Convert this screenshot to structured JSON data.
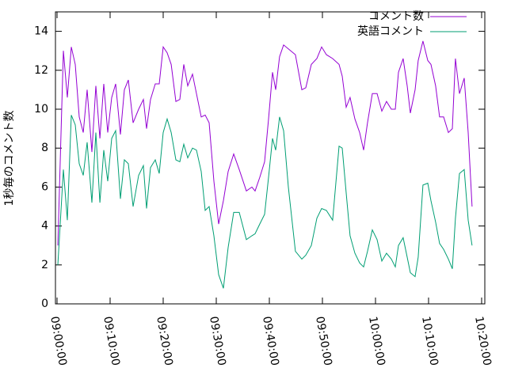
{
  "chart_data": {
    "type": "line",
    "y_label": "1秒毎のコメント数",
    "x": [
      "09:00:09",
      "09:01:12",
      "09:01:56",
      "09:02:41",
      "09:03:26",
      "09:04:11",
      "09:04:56",
      "09:05:40",
      "09:06:34",
      "09:07:19",
      "09:08:04",
      "09:08:48",
      "09:09:33",
      "09:10:18",
      "09:11:03",
      "09:11:56",
      "09:12:41",
      "09:13:26",
      "09:14:20",
      "09:15:22",
      "09:16:16",
      "09:16:52",
      "09:17:37",
      "09:18:30",
      "09:19:15",
      "09:20:00",
      "09:20:45",
      "09:21:30",
      "09:22:23",
      "09:23:08",
      "09:23:53",
      "09:24:38",
      "09:25:31",
      "09:26:16",
      "09:27:10",
      "09:27:55",
      "09:28:39",
      "09:29:33",
      "09:30:27",
      "09:31:21",
      "09:32:14",
      "09:33:17",
      "09:34:20",
      "09:35:40",
      "09:36:43",
      "09:37:19",
      "09:38:12",
      "09:39:06",
      "09:39:51",
      "09:40:36",
      "09:41:12",
      "09:41:56",
      "09:42:41",
      "09:43:35",
      "09:44:55",
      "09:46:07",
      "09:46:52",
      "09:47:55",
      "09:48:57",
      "09:49:51",
      "09:50:45",
      "09:51:56",
      "09:53:08",
      "09:53:44",
      "09:54:29",
      "09:55:13",
      "09:56:07",
      "09:57:01",
      "09:57:46",
      "09:58:30",
      "09:59:24",
      "10:00:18",
      "10:01:12",
      "10:02:05",
      "10:02:59",
      "10:03:44",
      "10:04:20",
      "10:05:13",
      "10:05:58",
      "10:06:34",
      "10:07:28",
      "10:08:03",
      "10:08:57",
      "10:09:51",
      "10:10:27",
      "10:11:20",
      "10:12:05",
      "10:12:50",
      "10:13:44",
      "10:14:29",
      "10:15:04",
      "10:15:49",
      "10:16:43",
      "10:17:28",
      "10:18:12"
    ],
    "series": [
      {
        "name": "コメント数",
        "color": "#9400d3",
        "values": [
          3,
          13,
          10.6,
          13.2,
          12.3,
          9.6,
          8.8,
          11,
          7.8,
          11.2,
          8.5,
          11.3,
          8.8,
          10.6,
          11.3,
          8.7,
          11,
          11.5,
          9.3,
          10,
          10.5,
          9,
          10.5,
          11.3,
          11.3,
          13.2,
          12.9,
          12.3,
          10.4,
          10.5,
          12.3,
          11.2,
          11.8,
          10.8,
          9.6,
          9.7,
          9.3,
          6.3,
          4.1,
          5.3,
          6.8,
          7.7,
          6.9,
          5.8,
          6,
          5.8,
          6.5,
          7.3,
          9.5,
          11.9,
          11,
          12.7,
          13.3,
          13.1,
          12.8,
          11,
          11.1,
          12.3,
          12.6,
          13.2,
          12.8,
          12.6,
          12.3,
          11.7,
          10.1,
          10.6,
          9.5,
          8.8,
          7.9,
          9.3,
          10.8,
          10.8,
          9.9,
          10.4,
          10,
          10,
          11.9,
          12.6,
          11.2,
          9.8,
          11,
          12.5,
          13.5,
          12.5,
          12.3,
          11.2,
          9.6,
          9.6,
          8.8,
          9,
          12.6,
          10.8,
          11.6,
          8.8,
          5
        ]
      },
      {
        "name": "英語コメント",
        "color": "#009e73",
        "values": [
          2,
          6.9,
          4.3,
          9.7,
          9.2,
          7.2,
          6.6,
          8.3,
          5.2,
          8.8,
          5.2,
          7.9,
          6.3,
          8.5,
          8.9,
          5.4,
          7.4,
          7.2,
          5,
          6.6,
          7.1,
          4.9,
          7,
          7.4,
          6.7,
          8.8,
          9.5,
          8.8,
          7.4,
          7.3,
          8.2,
          7.5,
          8,
          7.9,
          6.8,
          4.8,
          5,
          3.5,
          1.5,
          0.8,
          2.9,
          4.7,
          4.7,
          3.3,
          3.5,
          3.6,
          4.1,
          4.6,
          6.5,
          8.5,
          7.9,
          9.6,
          8.9,
          6,
          2.7,
          2.3,
          2.5,
          3,
          4.4,
          4.9,
          4.8,
          4.3,
          8.1,
          8,
          5.7,
          3.5,
          2.6,
          2.1,
          1.9,
          2.7,
          3.8,
          3.3,
          2.2,
          2.6,
          2.3,
          1.9,
          3,
          3.4,
          2.4,
          1.6,
          1.4,
          2.4,
          6.1,
          6.2,
          5.3,
          4.2,
          3.1,
          2.8,
          2.3,
          1.8,
          4.4,
          6.7,
          6.9,
          4.3,
          3
        ]
      }
    ],
    "xlim": [
      "08:59:42",
      "10:20:36"
    ],
    "xticks": [
      "09:00:00",
      "09:10:00",
      "09:20:00",
      "09:30:00",
      "09:40:00",
      "09:50:00",
      "10:00:00",
      "10:10:00",
      "10:20:00"
    ],
    "ylim": [
      0,
      15
    ],
    "yticks": [
      0,
      2,
      4,
      6,
      8,
      10,
      12,
      14
    ],
    "legend": "top-right"
  }
}
